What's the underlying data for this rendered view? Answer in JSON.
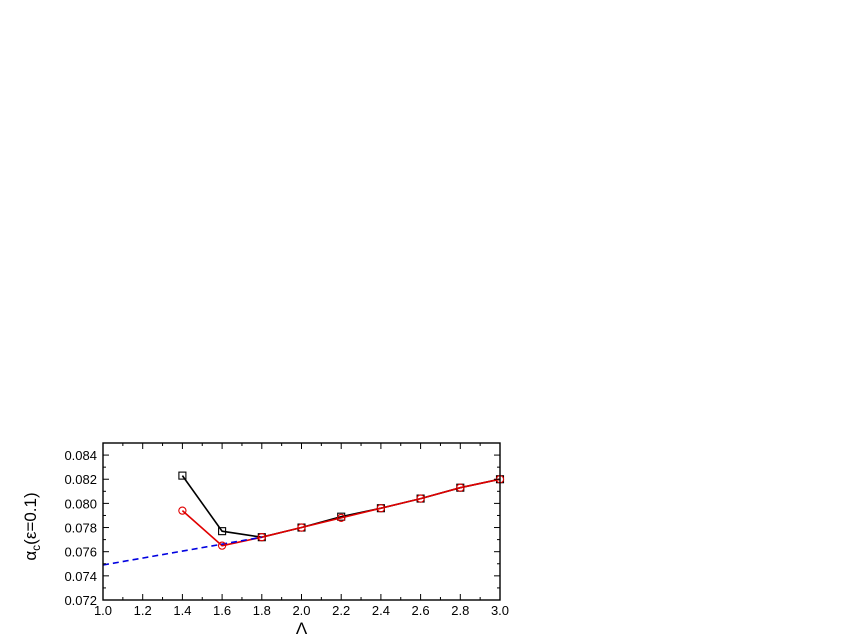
{
  "chart_data": {
    "type": "line",
    "title": "",
    "xlabel": "Λ",
    "ylabel": {
      "main": "α",
      "subscript": "c",
      "suffix": "(ε=0.1)"
    },
    "xlim": [
      1.0,
      3.0
    ],
    "ylim": [
      0.072,
      0.085
    ],
    "x_ticks": [
      "1.0",
      "1.2",
      "1.4",
      "1.6",
      "1.8",
      "2.0",
      "2.2",
      "2.4",
      "2.6",
      "2.8",
      "3.0"
    ],
    "y_ticks": [
      "0.072",
      "0.074",
      "0.076",
      "0.078",
      "0.080",
      "0.082",
      "0.084"
    ],
    "grid": false,
    "series": [
      {
        "marker": "square",
        "color": "#000000",
        "line": "solid",
        "points": [
          [
            1.4,
            0.0823
          ],
          [
            1.6,
            0.0777
          ],
          [
            1.8,
            0.0772
          ],
          [
            2.0,
            0.078
          ],
          [
            2.2,
            0.0789
          ],
          [
            2.4,
            0.0796
          ],
          [
            2.6,
            0.0804
          ],
          [
            2.8,
            0.0813
          ],
          [
            3.0,
            0.082
          ]
        ]
      },
      {
        "marker": "circle",
        "color": "#e00000",
        "line": "solid",
        "points": [
          [
            1.4,
            0.0794
          ],
          [
            1.6,
            0.0765
          ],
          [
            1.8,
            0.0772
          ],
          [
            2.0,
            0.078
          ],
          [
            2.2,
            0.0788
          ],
          [
            2.4,
            0.0796
          ],
          [
            2.6,
            0.0804
          ],
          [
            2.8,
            0.0813
          ],
          [
            3.0,
            0.082
          ]
        ]
      },
      {
        "marker": "none",
        "color": "#0000e0",
        "line": "dashed",
        "points": [
          [
            1.0,
            0.0749
          ],
          [
            1.8,
            0.0772
          ]
        ]
      }
    ]
  }
}
